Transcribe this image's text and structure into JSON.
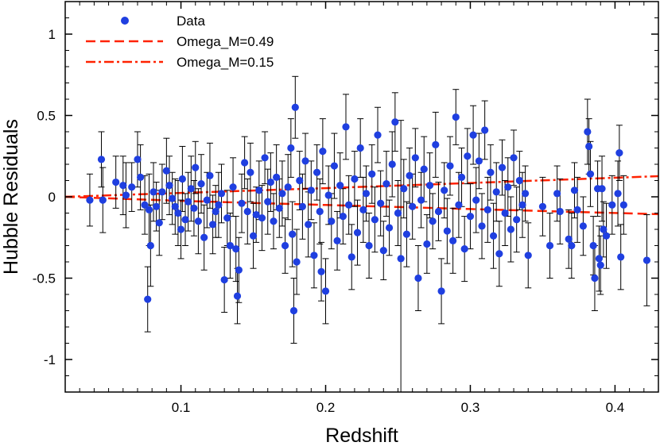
{
  "chart_data": {
    "type": "scatter",
    "title": "",
    "xlabel": "Redshift",
    "ylabel": "Hubble Residuals",
    "xlim": [
      0.02,
      0.43
    ],
    "ylim": [
      -1.2,
      1.2
    ],
    "x_ticks": [
      0.1,
      0.2,
      0.3,
      0.4
    ],
    "x_tick_labels": [
      "0.1",
      "0.2",
      "0.3",
      "0.4"
    ],
    "y_ticks": [
      -1,
      -0.5,
      0,
      0.5,
      1
    ],
    "y_tick_labels": [
      "-1",
      "-0.5",
      "0",
      "0.5",
      "1"
    ],
    "grid": false,
    "legend_position": "top-left",
    "series": [
      {
        "name": "Data",
        "kind": "scatter-errorbar",
        "color": "#1f3fe0",
        "points": [
          [
            0.037,
            -0.02,
            0.16
          ],
          [
            0.045,
            0.23,
            0.17
          ],
          [
            0.046,
            -0.02,
            0.2
          ],
          [
            0.055,
            0.09,
            0.16
          ],
          [
            0.06,
            0.07,
            0.18
          ],
          [
            0.062,
            0.01,
            0.2
          ],
          [
            0.066,
            0.06,
            0.15
          ],
          [
            0.07,
            0.23,
            0.17
          ],
          [
            0.072,
            0.12,
            0.2
          ],
          [
            0.075,
            -0.05,
            0.18
          ],
          [
            0.077,
            -0.63,
            0.2
          ],
          [
            0.078,
            -0.08,
            0.22
          ],
          [
            0.079,
            -0.3,
            0.25
          ],
          [
            0.081,
            0.03,
            0.18
          ],
          [
            0.083,
            -0.06,
            0.15
          ],
          [
            0.085,
            -0.16,
            0.2
          ],
          [
            0.087,
            0.03,
            0.17
          ],
          [
            0.09,
            0.16,
            0.2
          ],
          [
            0.092,
            0.07,
            0.18
          ],
          [
            0.094,
            -0.01,
            0.16
          ],
          [
            0.096,
            -0.06,
            0.17
          ],
          [
            0.098,
            -0.1,
            0.2
          ],
          [
            0.1,
            -0.2,
            0.18
          ],
          [
            0.101,
            0.11,
            0.2
          ],
          [
            0.103,
            -0.14,
            0.16
          ],
          [
            0.105,
            -0.03,
            0.18
          ],
          [
            0.107,
            0.05,
            0.2
          ],
          [
            0.109,
            -0.07,
            0.17
          ],
          [
            0.11,
            0.18,
            0.16
          ],
          [
            0.112,
            -0.15,
            0.2
          ],
          [
            0.114,
            0.08,
            0.18
          ],
          [
            0.116,
            -0.25,
            0.2
          ],
          [
            0.118,
            -0.02,
            0.17
          ],
          [
            0.12,
            0.13,
            0.2
          ],
          [
            0.122,
            -0.17,
            0.18
          ],
          [
            0.124,
            -0.09,
            0.16
          ],
          [
            0.126,
            -0.05,
            0.2
          ],
          [
            0.128,
            0.02,
            0.18
          ],
          [
            0.13,
            -0.51,
            0.2
          ],
          [
            0.132,
            -0.13,
            0.17
          ],
          [
            0.134,
            -0.3,
            0.2
          ],
          [
            0.136,
            0.06,
            0.18
          ],
          [
            0.138,
            -0.32,
            0.2
          ],
          [
            0.139,
            -0.61,
            0.17
          ],
          [
            0.14,
            -0.45,
            0.2
          ],
          [
            0.142,
            -0.04,
            0.18
          ],
          [
            0.144,
            0.21,
            0.16
          ],
          [
            0.146,
            -0.09,
            0.2
          ],
          [
            0.148,
            0.15,
            0.18
          ],
          [
            0.15,
            -0.24,
            0.2
          ],
          [
            0.152,
            -0.11,
            0.17
          ],
          [
            0.154,
            0.04,
            0.18
          ],
          [
            0.156,
            -0.13,
            0.2
          ],
          [
            0.158,
            0.24,
            0.16
          ],
          [
            0.16,
            -0.03,
            0.2
          ],
          [
            0.162,
            0.09,
            0.18
          ],
          [
            0.164,
            -0.15,
            0.17
          ],
          [
            0.166,
            0.12,
            0.2
          ],
          [
            0.168,
            -0.07,
            0.18
          ],
          [
            0.17,
            0.02,
            0.2
          ],
          [
            0.172,
            -0.3,
            0.17
          ],
          [
            0.174,
            0.06,
            0.2
          ],
          [
            0.176,
            0.3,
            0.18
          ],
          [
            0.177,
            -0.23,
            0.2
          ],
          [
            0.178,
            -0.7,
            0.2
          ],
          [
            0.179,
            0.55,
            0.19
          ],
          [
            0.18,
            -0.4,
            0.2
          ],
          [
            0.182,
            0.1,
            0.18
          ],
          [
            0.184,
            -0.06,
            0.2
          ],
          [
            0.186,
            0.22,
            0.17
          ],
          [
            0.188,
            -0.17,
            0.2
          ],
          [
            0.19,
            0.04,
            0.18
          ],
          [
            0.192,
            -0.36,
            0.2
          ],
          [
            0.194,
            0.15,
            0.17
          ],
          [
            0.196,
            -0.09,
            0.2
          ],
          [
            0.197,
            -0.46,
            0.18
          ],
          [
            0.198,
            0.28,
            0.2
          ],
          [
            0.2,
            -0.58,
            0.2
          ],
          [
            0.202,
            0.01,
            0.18
          ],
          [
            0.204,
            -0.15,
            0.17
          ],
          [
            0.206,
            0.19,
            0.2
          ],
          [
            0.208,
            -0.27,
            0.18
          ],
          [
            0.21,
            0.07,
            0.2
          ],
          [
            0.212,
            -0.12,
            0.17
          ],
          [
            0.214,
            0.43,
            0.2
          ],
          [
            0.216,
            -0.05,
            0.18
          ],
          [
            0.218,
            -0.37,
            0.2
          ],
          [
            0.22,
            0.11,
            0.17
          ],
          [
            0.222,
            -0.22,
            0.2
          ],
          [
            0.224,
            0.3,
            0.18
          ],
          [
            0.226,
            -0.08,
            0.2
          ],
          [
            0.228,
            0.02,
            0.17
          ],
          [
            0.23,
            -0.3,
            0.2
          ],
          [
            0.232,
            0.14,
            0.18
          ],
          [
            0.234,
            -0.14,
            0.2
          ],
          [
            0.236,
            0.38,
            0.17
          ],
          [
            0.238,
            -0.04,
            0.2
          ],
          [
            0.24,
            -0.33,
            0.18
          ],
          [
            0.242,
            0.08,
            0.2
          ],
          [
            0.244,
            -0.19,
            0.17
          ],
          [
            0.246,
            0.2,
            0.2
          ],
          [
            0.248,
            0.46,
            0.18
          ],
          [
            0.25,
            -0.1,
            0.2
          ],
          [
            0.252,
            -0.38,
            0.85
          ],
          [
            0.254,
            0.05,
            0.18
          ],
          [
            0.256,
            -0.23,
            0.2
          ],
          [
            0.258,
            0.13,
            0.17
          ],
          [
            0.26,
            -0.06,
            0.2
          ],
          [
            0.262,
            0.24,
            0.18
          ],
          [
            0.264,
            -0.5,
            0.2
          ],
          [
            0.266,
            -0.02,
            0.17
          ],
          [
            0.268,
            0.17,
            0.2
          ],
          [
            0.27,
            -0.29,
            0.18
          ],
          [
            0.272,
            0.07,
            0.2
          ],
          [
            0.274,
            -0.15,
            0.17
          ],
          [
            0.276,
            0.32,
            0.2
          ],
          [
            0.278,
            -0.09,
            0.18
          ],
          [
            0.28,
            -0.58,
            0.2
          ],
          [
            0.282,
            0.04,
            0.17
          ],
          [
            0.284,
            -0.21,
            0.2
          ],
          [
            0.286,
            0.19,
            0.18
          ],
          [
            0.288,
            -0.27,
            0.2
          ],
          [
            0.29,
            0.49,
            0.17
          ],
          [
            0.292,
            -0.05,
            0.2
          ],
          [
            0.294,
            0.12,
            0.18
          ],
          [
            0.296,
            -0.32,
            0.2
          ],
          [
            0.298,
            0.25,
            0.17
          ],
          [
            0.3,
            -0.12,
            0.2
          ],
          [
            0.302,
            0.38,
            0.18
          ],
          [
            0.304,
            -0.02,
            0.2
          ],
          [
            0.306,
            0.22,
            0.17
          ],
          [
            0.308,
            -0.18,
            0.2
          ],
          [
            0.31,
            0.41,
            0.18
          ],
          [
            0.312,
            -0.08,
            0.2
          ],
          [
            0.314,
            0.15,
            0.17
          ],
          [
            0.316,
            -0.24,
            0.2
          ],
          [
            0.318,
            0.03,
            0.18
          ],
          [
            0.32,
            -0.35,
            0.2
          ],
          [
            0.322,
            0.18,
            0.17
          ],
          [
            0.324,
            -0.1,
            0.2
          ],
          [
            0.326,
            0.06,
            0.18
          ],
          [
            0.328,
            -0.2,
            0.2
          ],
          [
            0.33,
            0.24,
            0.17
          ],
          [
            0.332,
            -0.14,
            0.2
          ],
          [
            0.334,
            0.1,
            0.18
          ],
          [
            0.336,
            -0.05,
            0.2
          ],
          [
            0.338,
            0.02,
            0.17
          ],
          [
            0.34,
            -0.36,
            0.2
          ],
          [
            0.35,
            -0.06,
            0.18
          ],
          [
            0.355,
            -0.3,
            0.2
          ],
          [
            0.36,
            0.02,
            0.17
          ],
          [
            0.362,
            -0.09,
            0.2
          ],
          [
            0.368,
            -0.26,
            0.18
          ],
          [
            0.37,
            -0.3,
            0.2
          ],
          [
            0.372,
            0.04,
            0.17
          ],
          [
            0.374,
            -0.08,
            0.2
          ],
          [
            0.378,
            -0.18,
            0.18
          ],
          [
            0.381,
            0.4,
            0.2
          ],
          [
            0.382,
            0.31,
            0.17
          ],
          [
            0.383,
            0.14,
            0.2
          ],
          [
            0.385,
            -0.3,
            0.18
          ],
          [
            0.386,
            -0.5,
            0.2
          ],
          [
            0.388,
            0.05,
            0.17
          ],
          [
            0.389,
            -0.38,
            0.2
          ],
          [
            0.39,
            -0.42,
            0.18
          ],
          [
            0.391,
            0.05,
            0.2
          ],
          [
            0.392,
            -0.2,
            0.17
          ],
          [
            0.394,
            -0.24,
            0.2
          ],
          [
            0.398,
            -0.05,
            0.18
          ],
          [
            0.402,
            0.02,
            0.2
          ],
          [
            0.403,
            0.27,
            0.17
          ],
          [
            0.404,
            -0.37,
            0.2
          ],
          [
            0.406,
            -0.05,
            0.18
          ],
          [
            0.422,
            -0.39,
            0.28
          ]
        ]
      },
      {
        "name": "Omega_M=0.49",
        "kind": "line",
        "style": "dashed",
        "color": "#ff2200",
        "x": [
          0.02,
          0.1,
          0.2,
          0.3,
          0.43
        ],
        "y": [
          0.0,
          -0.025,
          -0.05,
          -0.075,
          -0.107
        ]
      },
      {
        "name": "Omega_M=0.15",
        "kind": "line",
        "style": "dash-dot",
        "color": "#ff2200",
        "x": [
          0.02,
          0.1,
          0.2,
          0.3,
          0.43
        ],
        "y": [
          0.0,
          0.024,
          0.053,
          0.085,
          0.127
        ]
      }
    ]
  }
}
